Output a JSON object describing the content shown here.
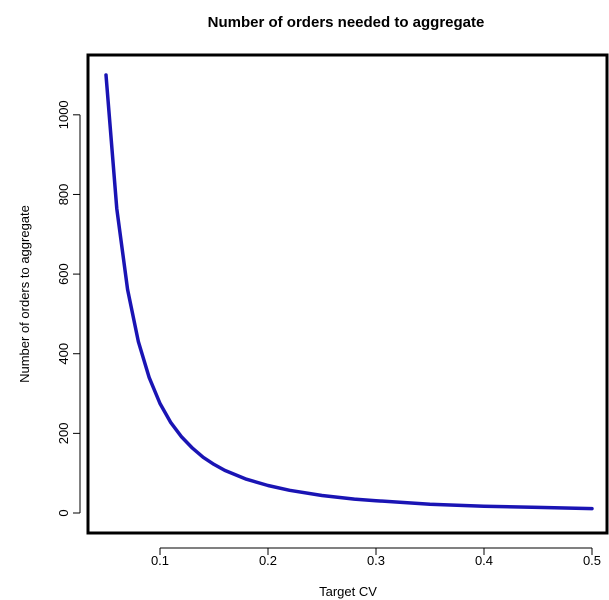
{
  "chart_data": {
    "type": "line",
    "title": "Number of orders needed to aggregate",
    "xlabel": "Target CV",
    "ylabel": "Number of orders to aggregate",
    "xlim": [
      0.05,
      0.5
    ],
    "ylim": [
      0,
      1100
    ],
    "grid": false,
    "x_ticks": [
      0.1,
      0.2,
      0.3,
      0.4,
      0.5
    ],
    "x_tick_labels": [
      "0.1",
      "0.2",
      "0.3",
      "0.4",
      "0.5"
    ],
    "y_ticks": [
      0,
      200,
      400,
      600,
      800,
      1000
    ],
    "y_tick_labels": [
      "0",
      "200",
      "400",
      "600",
      "800",
      "1000"
    ],
    "series": [
      {
        "color": "#1a14b4",
        "x": [
          0.05,
          0.06,
          0.07,
          0.08,
          0.09,
          0.1,
          0.11,
          0.12,
          0.13,
          0.14,
          0.15,
          0.16,
          0.18,
          0.2,
          0.22,
          0.25,
          0.28,
          0.3,
          0.35,
          0.4,
          0.45,
          0.5
        ],
        "y": [
          1100,
          764,
          561,
          430,
          340,
          275,
          227,
          191,
          163,
          140,
          122,
          107,
          85,
          69,
          57,
          44,
          35,
          31,
          22,
          17,
          14,
          11
        ]
      }
    ]
  }
}
